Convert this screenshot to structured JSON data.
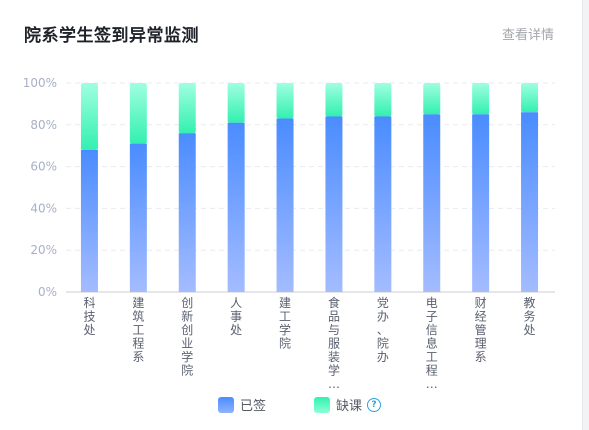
{
  "header": {
    "title": "院系学生签到异常监测",
    "more_link": "查看详情"
  },
  "legend": {
    "present_label": "已签",
    "absent_label": "缺课",
    "help_icon": "?"
  },
  "colors": {
    "present_top": "#4a8cff",
    "present_bottom": "#a4bcff",
    "absent_top": "#33f0b0",
    "absent_bottom": "#9fffe0"
  },
  "chart_data": {
    "type": "bar",
    "stacked": true,
    "categories": [
      "科技处",
      "建筑工程系",
      "创新创业学院",
      "人事处",
      "建工学院",
      "食品与服装学…",
      "党办、院办",
      "电子信息工程…",
      "财经管理系",
      "教务处"
    ],
    "series": [
      {
        "name": "已签",
        "values": [
          68,
          71,
          76,
          81,
          83,
          84,
          84,
          85,
          85,
          86
        ]
      },
      {
        "name": "缺课",
        "values": [
          32,
          29,
          24,
          19,
          17,
          16,
          16,
          15,
          15,
          14
        ]
      }
    ],
    "yticks": [
      "0%",
      "20%",
      "40%",
      "60%",
      "80%",
      "100%"
    ],
    "ylim": [
      0,
      100
    ],
    "grid": true,
    "legend_position": "bottom"
  }
}
